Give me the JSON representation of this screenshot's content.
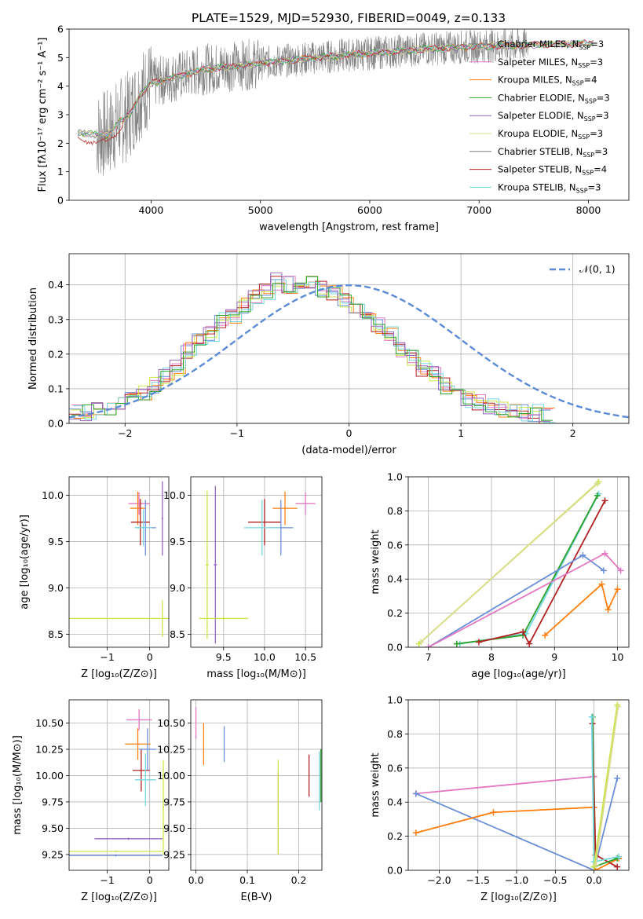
{
  "chart_data": [
    {
      "type": "line",
      "title": "PLATE=1529, MJD=52930, FIBERID=0049, z=0.133",
      "xlabel": "wavelength [Angstrom, rest frame]",
      "ylabel": "Flux [fλ10⁻¹⁷ erg cm⁻² s⁻¹ A⁻¹]",
      "xlim": [
        3250,
        8370
      ],
      "ylim": [
        0,
        6
      ],
      "xticks": [
        4000,
        5000,
        6000,
        7000,
        8000
      ],
      "yticks": [
        0,
        1,
        2,
        3,
        4,
        5,
        6
      ],
      "legend_position": "top-right",
      "data_envelope": {
        "x": [
          3300,
          3500,
          3600,
          3700,
          3800,
          3900,
          4000,
          4200,
          4500,
          5000,
          5500,
          6000,
          6500,
          7000,
          7500,
          8000,
          8370
        ],
        "y": [
          2.4,
          2.3,
          2.3,
          2.7,
          3.0,
          3.7,
          4.1,
          4.3,
          4.6,
          4.8,
          5.0,
          5.15,
          5.3,
          5.4,
          5.45,
          5.5,
          5.5
        ]
      },
      "series": [
        {
          "name": "Chabrier MILES, N_SSP=3",
          "color": "#808080"
        },
        {
          "name": "Salpeter MILES, N_SSP=3",
          "color": "#e377c2"
        },
        {
          "name": "Kroupa MILES, N_SSP=4",
          "color": "#ff7f0e"
        },
        {
          "name": "Chabrier ELODIE, N_SSP=3",
          "color": "#2ca02c"
        },
        {
          "name": "Salpeter ELODIE, N_SSP=3",
          "color": "#9467bd"
        },
        {
          "name": "Kroupa ELODIE, N_SSP=3",
          "color": "#dbdb8d"
        },
        {
          "name": "Chabrier STELIB, N_SSP=3",
          "color": "#7f7f7f"
        },
        {
          "name": "Salpeter STELIB, N_SSP=4",
          "color": "#b22222"
        },
        {
          "name": "Kroupa STELIB, N_SSP=3",
          "color": "#76d7e0"
        }
      ]
    },
    {
      "type": "histogram",
      "xlabel": "(data-model)/error",
      "ylabel": "Normed distribution",
      "xlim": [
        -2.5,
        2.5
      ],
      "ylim": [
        0,
        0.49
      ],
      "xticks": [
        -2,
        -1,
        0,
        1,
        2
      ],
      "yticks": [
        0.0,
        0.1,
        0.2,
        0.3,
        0.4
      ],
      "grid": true,
      "legend": "𝒩(0, 1)",
      "legend_position": "top-right",
      "reference_curve": "N(0,1)",
      "bin_width": 0.1,
      "bins_approx": [
        0.03,
        0.03,
        0.04,
        0.04,
        0.06,
        0.07,
        0.09,
        0.11,
        0.14,
        0.16,
        0.21,
        0.24,
        0.26,
        0.3,
        0.31,
        0.34,
        0.37,
        0.38,
        0.41,
        0.4,
        0.41,
        0.41,
        0.39,
        0.38,
        0.36,
        0.34,
        0.3,
        0.28,
        0.26,
        0.21,
        0.19,
        0.16,
        0.14,
        0.11,
        0.09,
        0.07,
        0.06,
        0.05,
        0.04,
        0.03,
        0.03,
        0.03,
        0.02
      ]
    },
    {
      "type": "scatter",
      "xlabel": "Z [log₁₀(Z/Z⊙)]",
      "ylabel": "age  [log₁₀(age/yr)]",
      "xlim": [
        -1.9,
        0.45
      ],
      "ylim": [
        8.36,
        10.2
      ],
      "xticks": [
        -1,
        0
      ],
      "yticks": [
        8.5,
        9.0,
        9.5,
        10.0
      ],
      "points": [
        {
          "x": -0.25,
          "y": 9.91,
          "xerr": 0.25,
          "yerr": 0.12,
          "color": "#e377c2"
        },
        {
          "x": -0.28,
          "y": 9.86,
          "xerr": 0.18,
          "yerr": 0.18,
          "color": "#ff7f0e"
        },
        {
          "x": -0.22,
          "y": 9.71,
          "xerr": 0.22,
          "yerr": 0.25,
          "color": "#b22222"
        },
        {
          "x": -0.1,
          "y": 9.65,
          "xerr": 0.25,
          "yerr": 0.3,
          "color": "#6a8fd8"
        },
        {
          "x": -0.15,
          "y": 9.65,
          "xerr": 0.2,
          "yerr": 0.2,
          "color": "#76d7e0"
        },
        {
          "x": 0.3,
          "y": 9.75,
          "xerr": 0.02,
          "yerr": 0.4,
          "color": "#9467bd"
        },
        {
          "x": 0.3,
          "y": 8.67,
          "xerr": 2.2,
          "yerr": 0.2,
          "color": "#c8e64a"
        }
      ]
    },
    {
      "type": "scatter",
      "xlabel": "mass [log₁₀(M/M⊙)]",
      "ylabel": "",
      "xlim": [
        9.1,
        10.7
      ],
      "ylim": [
        8.36,
        10.2
      ],
      "xticks": [
        9.5,
        10.0,
        10.5
      ],
      "yticks": [
        8.5,
        9.0,
        9.5,
        10.0
      ],
      "points": [
        {
          "x": 10.5,
          "y": 9.91,
          "xerr": 0.12,
          "yerr": 0.12,
          "color": "#e377c2"
        },
        {
          "x": 10.25,
          "y": 9.86,
          "xerr": 0.15,
          "yerr": 0.18,
          "color": "#ff7f0e"
        },
        {
          "x": 10.0,
          "y": 9.71,
          "xerr": 0.2,
          "yerr": 0.25,
          "color": "#b22222"
        },
        {
          "x": 10.2,
          "y": 9.65,
          "xerr": 0.15,
          "yerr": 0.3,
          "color": "#6a8fd8"
        },
        {
          "x": 9.97,
          "y": 9.65,
          "xerr": 0.22,
          "yerr": 0.3,
          "color": "#76d7e0"
        },
        {
          "x": 9.4,
          "y": 9.25,
          "xerr": 0.02,
          "yerr": 0.85,
          "color": "#9467bd"
        },
        {
          "x": 9.3,
          "y": 9.25,
          "xerr": 0.02,
          "yerr": 0.8,
          "color": "#c8e64a"
        },
        {
          "x": 9.5,
          "y": 8.67,
          "xerr": 0.3,
          "yerr": 0.02,
          "color": "#c8e64a"
        }
      ]
    },
    {
      "type": "line",
      "xlabel": "age  [log₁₀(age/yr)]",
      "ylabel": "mass weight",
      "xlim": [
        6.68,
        10.18
      ],
      "ylim": [
        0,
        1
      ],
      "xticks": [
        7,
        8,
        9,
        10
      ],
      "yticks": [
        0.0,
        0.2,
        0.4,
        0.6,
        0.8,
        1.0
      ],
      "grid": true,
      "series": [
        {
          "color": "#c8e64a",
          "x": [
            6.85,
            9.7
          ],
          "y": [
            0.02,
            0.97
          ]
        },
        {
          "color": "#dbdb8d",
          "x": [
            6.88,
            9.68
          ],
          "y": [
            0.03,
            0.96
          ]
        },
        {
          "color": "#76d7e0",
          "x": [
            7.5,
            8.55,
            9.7
          ],
          "y": [
            0.02,
            0.08,
            0.9
          ]
        },
        {
          "color": "#2ca02c",
          "x": [
            7.45,
            8.5,
            9.68
          ],
          "y": [
            0.02,
            0.07,
            0.89
          ]
        },
        {
          "color": "#b22222",
          "x": [
            7.8,
            8.5,
            8.6,
            9.8
          ],
          "y": [
            0.03,
            0.09,
            0.02,
            0.86
          ]
        },
        {
          "color": "#6a8fd8",
          "x": [
            7.0,
            9.45,
            9.78
          ],
          "y": [
            0.0,
            0.54,
            0.45
          ]
        },
        {
          "color": "#e377c2",
          "x": [
            7.0,
            9.8,
            10.05
          ],
          "y": [
            0.0,
            0.55,
            0.45
          ]
        },
        {
          "color": "#ff7f0e",
          "x": [
            8.85,
            9.75,
            9.85,
            10.0
          ],
          "y": [
            0.07,
            0.37,
            0.22,
            0.34
          ]
        }
      ]
    },
    {
      "type": "scatter",
      "xlabel": "Z [log₁₀(Z/Z⊙)]",
      "ylabel": "mass [log₁₀(M/M⊙)]",
      "xlim": [
        -1.9,
        0.45
      ],
      "ylim": [
        9.1,
        10.72
      ],
      "xticks": [
        -1,
        0
      ],
      "yticks": [
        9.25,
        9.5,
        9.75,
        10.0,
        10.25,
        10.5
      ],
      "points": [
        {
          "x": -0.25,
          "y": 10.53,
          "xerr": 0.3,
          "yerr": 0.1,
          "color": "#e377c2"
        },
        {
          "x": -0.28,
          "y": 10.3,
          "xerr": 0.3,
          "yerr": 0.15,
          "color": "#ff7f0e"
        },
        {
          "x": -0.2,
          "y": 10.05,
          "xerr": 0.2,
          "yerr": 0.2,
          "color": "#b22222"
        },
        {
          "x": -0.05,
          "y": 10.25,
          "xerr": 0.2,
          "yerr": 0.2,
          "color": "#6a8fd8"
        },
        {
          "x": -0.1,
          "y": 9.96,
          "xerr": 0.25,
          "yerr": 0.25,
          "color": "#76d7e0"
        },
        {
          "x": -0.5,
          "y": 9.4,
          "xerr": 0.8,
          "yerr": 0.01,
          "color": "#9467bd"
        },
        {
          "x": 0.32,
          "y": 9.7,
          "xerr": 0.02,
          "yerr": 0.45,
          "color": "#c8e64a"
        },
        {
          "x": -0.8,
          "y": 9.28,
          "xerr": 1.1,
          "yerr": 0.01,
          "color": "#c8e64a"
        },
        {
          "x": -0.8,
          "y": 9.24,
          "xerr": 1.1,
          "yerr": 0.01,
          "color": "#6a8fd8"
        }
      ]
    },
    {
      "type": "scatter",
      "xlabel": "E(B-V)",
      "ylabel": "",
      "xlim": [
        -0.01,
        0.245
      ],
      "ylim": [
        9.1,
        10.72
      ],
      "xticks": [
        0.0,
        0.1,
        0.2
      ],
      "yticks": [
        9.25,
        9.5,
        9.75,
        10.0,
        10.25,
        10.5
      ],
      "points": [
        {
          "x": 0.0,
          "y": 10.5,
          "yerr": 0.15,
          "color": "#e377c2"
        },
        {
          "x": 0.015,
          "y": 10.3,
          "yerr": 0.2,
          "color": "#ff7f0e"
        },
        {
          "x": 0.055,
          "y": 10.3,
          "yerr": 0.17,
          "color": "#6a8fd8"
        },
        {
          "x": 0.16,
          "y": 9.65,
          "yerr": 0.4,
          "color": "#ff7f0e"
        },
        {
          "x": 0.16,
          "y": 9.7,
          "yerr": 0.45,
          "color": "#c8e64a"
        },
        {
          "x": 0.22,
          "y": 10.0,
          "yerr": 0.2,
          "color": "#b22222"
        },
        {
          "x": 0.24,
          "y": 9.95,
          "yerr": 0.28,
          "color": "#76d7e0"
        },
        {
          "x": 0.243,
          "y": 10.0,
          "yerr": 0.25,
          "color": "#2ca02c"
        }
      ]
    },
    {
      "type": "line",
      "xlabel": "Z [log₁₀(Z/Z⊙)]",
      "ylabel": "mass weight",
      "xlim": [
        -2.4,
        0.45
      ],
      "ylim": [
        0,
        1
      ],
      "xticks": [
        -2.0,
        -1.5,
        -1.0,
        -0.5,
        0.0
      ],
      "yticks": [
        0.0,
        0.2,
        0.4,
        0.6,
        0.8,
        1.0
      ],
      "grid": true,
      "series": [
        {
          "color": "#e377c2",
          "x": [
            -2.3,
            0.0
          ],
          "y": [
            0.45,
            0.55
          ]
        },
        {
          "color": "#6a8fd8",
          "x": [
            -2.3,
            0.0,
            0.3
          ],
          "y": [
            0.45,
            0.0,
            0.54
          ]
        },
        {
          "color": "#ff7f0e",
          "x": [
            -2.3,
            -1.3,
            0.0,
            0.02,
            0.32
          ],
          "y": [
            0.22,
            0.34,
            0.37,
            0.0,
            0.07
          ]
        },
        {
          "color": "#b22222",
          "x": [
            -0.02,
            0.02,
            0.3
          ],
          "y": [
            0.86,
            0.09,
            0.02
          ]
        },
        {
          "color": "#2ca02c",
          "x": [
            -0.02,
            0.0,
            0.3
          ],
          "y": [
            0.9,
            0.02,
            0.07
          ]
        },
        {
          "color": "#76d7e0",
          "x": [
            -0.03,
            0.0,
            0.32
          ],
          "y": [
            0.9,
            0.05,
            0.08
          ]
        },
        {
          "color": "#c8e64a",
          "x": [
            0.0,
            0.3
          ],
          "y": [
            0.02,
            0.97
          ]
        },
        {
          "color": "#dbdb8d",
          "x": [
            0.02,
            0.31
          ],
          "y": [
            0.03,
            0.96
          ]
        }
      ]
    }
  ]
}
